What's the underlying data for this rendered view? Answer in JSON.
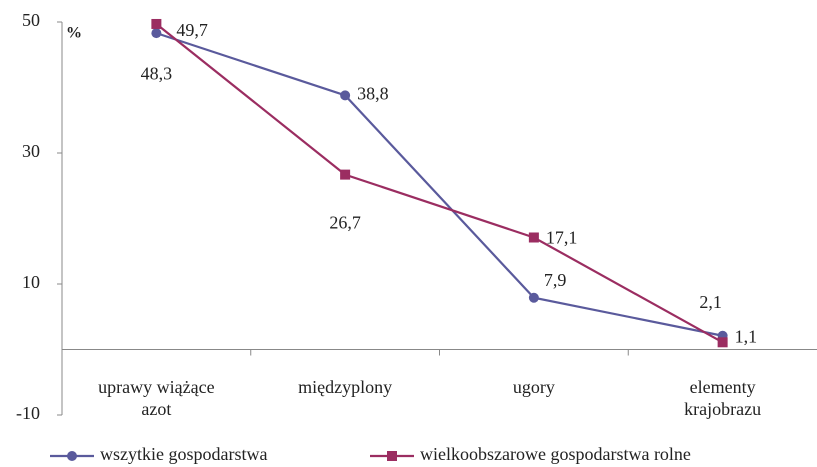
{
  "chart_data": {
    "type": "line",
    "y_label": "%",
    "categories": [
      "uprawy wiążące\nazot",
      "międzyplony",
      "ugory",
      "elementy\nkrajobrazu"
    ],
    "series": [
      {
        "name": "wszytkie gospodarstwa",
        "color": "#5a5a9c",
        "marker": "circle",
        "values": [
          48.3,
          38.8,
          7.9,
          2.1
        ],
        "value_labels": [
          "48,3",
          "38,8",
          "7,9",
          "2,1"
        ]
      },
      {
        "name": "wielkoobszarowe gospodarstwa rolne",
        "color": "#9b2d61",
        "marker": "square",
        "values": [
          49.7,
          26.7,
          17.1,
          1.1
        ],
        "value_labels": [
          "49,7",
          "26,7",
          "17,1",
          "1,1"
        ]
      }
    ],
    "ylim": [
      -10,
      50
    ],
    "yticks": [
      -10,
      10,
      30,
      50
    ],
    "grid": false,
    "legend": "bottom"
  }
}
